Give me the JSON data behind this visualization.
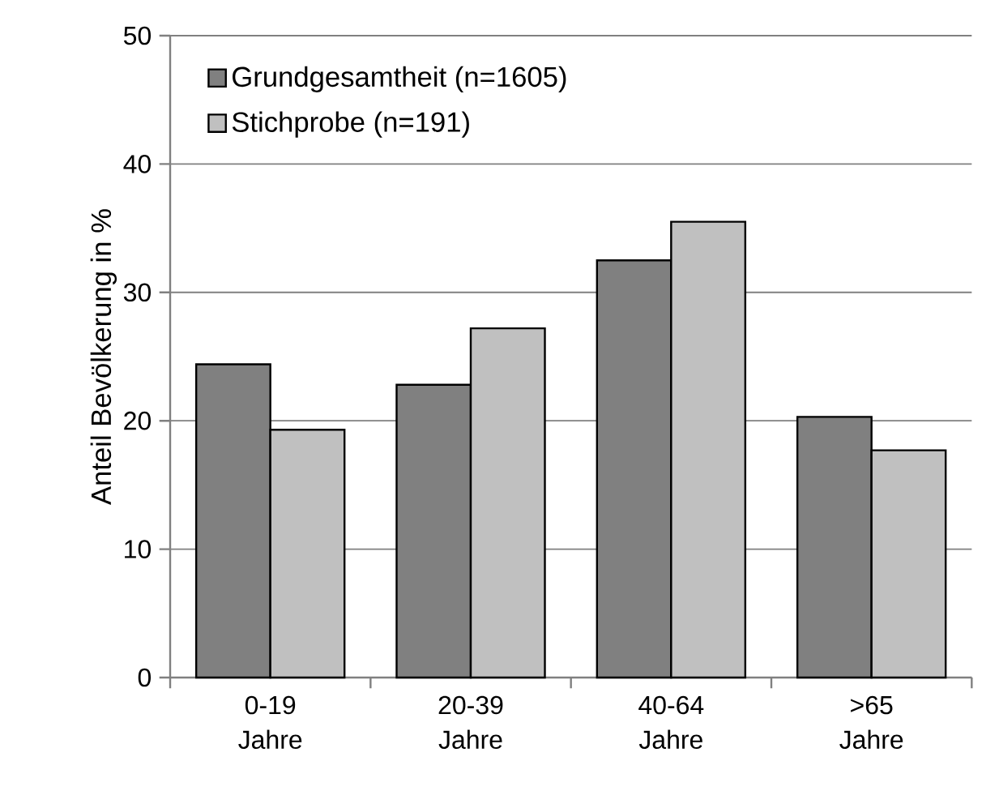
{
  "chart_data": {
    "type": "bar",
    "ylabel": "Anteil Bevölkerung in %",
    "categories": [
      "0-19 Jahre",
      "20-39 Jahre",
      "40-64 Jahre",
      ">65 Jahre"
    ],
    "series": [
      {
        "name": "Grundgesamtheit (n=1605)",
        "color": "#808080",
        "values": [
          24.4,
          22.8,
          32.5,
          20.3
        ]
      },
      {
        "name": "Stichprobe (n=191)",
        "color": "#c0c0c0",
        "values": [
          19.3,
          27.2,
          35.5,
          17.7
        ]
      }
    ],
    "ylim": [
      0,
      50
    ],
    "yticks": [
      0,
      10,
      20,
      30,
      40,
      50
    ],
    "grid": "y",
    "legend": "top left"
  }
}
